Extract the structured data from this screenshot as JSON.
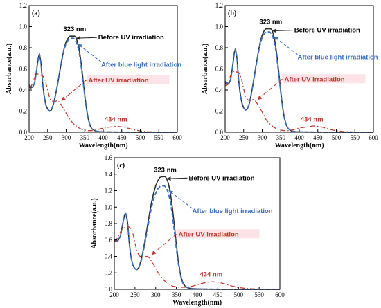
{
  "colors": {
    "before": "#2b2b2b",
    "blue": "#3a6fc4",
    "uv": "#c0392b",
    "peak_label": "#c0392b",
    "blue_label": "#3a6fc4",
    "uv_label": "#c0392b",
    "uv_label_bg": "#fbe3e8"
  },
  "chart_data": [
    {
      "type": "line",
      "panel_label": "(a)",
      "xlabel": "Wavelength(nm)",
      "ylabel": "Absorbance(a.u.)",
      "xlim": [
        200,
        600
      ],
      "ylim": [
        0.0,
        1.2
      ],
      "xticks": [
        200,
        250,
        300,
        350,
        400,
        450,
        500,
        550,
        600
      ],
      "yticks": [
        0.0,
        0.2,
        0.4,
        0.6,
        0.8,
        1.0,
        1.2
      ],
      "ytick_labels": [
        "0.0",
        "0.2",
        "0.4",
        "0.6",
        "0.8",
        "1.0",
        "1.2"
      ],
      "annotations": {
        "peak_uv": "323 nm",
        "before": "Before UV irradiation",
        "blue": "After blue light irradiation",
        "uv": "After UV irradiation",
        "peak_vis": "434 nm"
      },
      "annotation_anchor": {
        "before": [
          323,
          0.91
        ],
        "blue": [
          327,
          0.85
        ],
        "uv": [
          285,
          0.29
        ],
        "peak_vis": [
          434,
          0.05
        ]
      },
      "series": [
        {
          "style": "before",
          "x": [
            200,
            205,
            210,
            215,
            220,
            225,
            228,
            232,
            236,
            240,
            245,
            250,
            255,
            260,
            265,
            270,
            275,
            280,
            285,
            290,
            295,
            300,
            305,
            310,
            315,
            320,
            323,
            326,
            330,
            335,
            340,
            345,
            350,
            355,
            360,
            365,
            370,
            375,
            380,
            390,
            400,
            420,
            450,
            500,
            550,
            600
          ],
          "y": [
            0.44,
            0.42,
            0.43,
            0.47,
            0.58,
            0.71,
            0.74,
            0.66,
            0.48,
            0.36,
            0.26,
            0.22,
            0.2,
            0.21,
            0.26,
            0.33,
            0.42,
            0.52,
            0.62,
            0.72,
            0.8,
            0.86,
            0.89,
            0.91,
            0.91,
            0.91,
            0.91,
            0.9,
            0.86,
            0.79,
            0.67,
            0.52,
            0.36,
            0.22,
            0.12,
            0.06,
            0.03,
            0.02,
            0.01,
            0.005,
            0.003,
            0.002,
            0.001,
            0.0,
            0.0,
            0.0
          ]
        },
        {
          "style": "blue",
          "x": [
            200,
            205,
            210,
            215,
            220,
            225,
            228,
            232,
            236,
            240,
            245,
            250,
            255,
            260,
            265,
            270,
            275,
            280,
            285,
            290,
            295,
            300,
            305,
            310,
            315,
            320,
            323,
            326,
            330,
            335,
            340,
            345,
            350,
            355,
            360,
            365,
            370,
            375,
            380,
            390,
            400,
            420,
            450,
            500,
            550,
            600
          ],
          "y": [
            0.45,
            0.43,
            0.43,
            0.47,
            0.58,
            0.71,
            0.74,
            0.66,
            0.48,
            0.36,
            0.26,
            0.22,
            0.2,
            0.21,
            0.26,
            0.33,
            0.42,
            0.52,
            0.62,
            0.71,
            0.79,
            0.84,
            0.87,
            0.89,
            0.89,
            0.89,
            0.88,
            0.86,
            0.83,
            0.76,
            0.64,
            0.5,
            0.35,
            0.22,
            0.12,
            0.06,
            0.03,
            0.02,
            0.01,
            0.005,
            0.003,
            0.002,
            0.001,
            0.0,
            0.0,
            0.0
          ]
        },
        {
          "style": "uv",
          "x": [
            200,
            205,
            210,
            215,
            220,
            225,
            230,
            235,
            240,
            245,
            250,
            255,
            260,
            265,
            270,
            275,
            280,
            285,
            290,
            295,
            300,
            305,
            310,
            320,
            330,
            340,
            350,
            360,
            370,
            380,
            390,
            400,
            410,
            420,
            430,
            440,
            450,
            460,
            470,
            480,
            500,
            520,
            550,
            600
          ],
          "y": [
            0.42,
            0.43,
            0.47,
            0.52,
            0.55,
            0.55,
            0.54,
            0.54,
            0.52,
            0.47,
            0.4,
            0.33,
            0.3,
            0.29,
            0.29,
            0.3,
            0.29,
            0.27,
            0.24,
            0.21,
            0.18,
            0.15,
            0.12,
            0.08,
            0.05,
            0.03,
            0.02,
            0.015,
            0.015,
            0.02,
            0.03,
            0.04,
            0.045,
            0.05,
            0.055,
            0.055,
            0.05,
            0.045,
            0.035,
            0.025,
            0.012,
            0.005,
            0.002,
            0.0
          ]
        }
      ]
    },
    {
      "type": "line",
      "panel_label": "(b)",
      "xlabel": "Wavelength(nm)",
      "ylabel": "Absorbance(a.u.)",
      "xlim": [
        200,
        600
      ],
      "ylim": [
        0.0,
        1.2
      ],
      "xticks": [
        200,
        250,
        300,
        350,
        400,
        450,
        500,
        550,
        600
      ],
      "yticks": [
        0.0,
        0.2,
        0.4,
        0.6,
        0.8,
        1.0,
        1.2
      ],
      "ytick_labels": [
        "0.0",
        "0.2",
        "0.4",
        "0.6",
        "0.8",
        "1.0",
        "1.2"
      ],
      "annotations": {
        "peak_uv": "323 nm",
        "before": "Before UV irradiation",
        "blue": "After blue light irradiation",
        "uv": "After UV irradiation",
        "peak_vis": "434 nm"
      },
      "annotation_anchor": {
        "before": [
          323,
          0.98
        ],
        "blue": [
          328,
          0.92
        ],
        "uv": [
          285,
          0.3
        ],
        "peak_vis": [
          434,
          0.05
        ]
      },
      "series": [
        {
          "style": "before",
          "x": [
            200,
            205,
            210,
            215,
            220,
            225,
            228,
            232,
            236,
            240,
            245,
            250,
            255,
            260,
            265,
            270,
            275,
            280,
            285,
            290,
            295,
            300,
            305,
            310,
            315,
            320,
            323,
            326,
            330,
            335,
            340,
            345,
            350,
            355,
            360,
            365,
            370,
            375,
            380,
            390,
            400,
            420,
            450,
            500,
            550,
            600
          ],
          "y": [
            0.47,
            0.45,
            0.46,
            0.5,
            0.62,
            0.76,
            0.79,
            0.7,
            0.51,
            0.38,
            0.28,
            0.23,
            0.21,
            0.22,
            0.27,
            0.35,
            0.45,
            0.56,
            0.67,
            0.77,
            0.86,
            0.92,
            0.96,
            0.98,
            0.98,
            0.98,
            0.98,
            0.97,
            0.93,
            0.85,
            0.72,
            0.56,
            0.39,
            0.24,
            0.13,
            0.07,
            0.035,
            0.02,
            0.01,
            0.005,
            0.003,
            0.002,
            0.001,
            0.0,
            0.0,
            0.0
          ]
        },
        {
          "style": "blue",
          "x": [
            200,
            205,
            210,
            215,
            220,
            225,
            228,
            232,
            236,
            240,
            245,
            250,
            255,
            260,
            265,
            270,
            275,
            280,
            285,
            290,
            295,
            300,
            305,
            310,
            315,
            320,
            323,
            326,
            330,
            335,
            340,
            345,
            350,
            355,
            360,
            365,
            370,
            375,
            380,
            390,
            400,
            420,
            450,
            500,
            550,
            600
          ],
          "y": [
            0.48,
            0.46,
            0.46,
            0.5,
            0.62,
            0.76,
            0.79,
            0.7,
            0.51,
            0.38,
            0.28,
            0.23,
            0.21,
            0.22,
            0.27,
            0.35,
            0.45,
            0.55,
            0.66,
            0.76,
            0.84,
            0.9,
            0.93,
            0.95,
            0.95,
            0.95,
            0.94,
            0.93,
            0.89,
            0.82,
            0.69,
            0.54,
            0.38,
            0.24,
            0.13,
            0.07,
            0.035,
            0.02,
            0.01,
            0.005,
            0.003,
            0.002,
            0.001,
            0.0,
            0.0,
            0.0
          ]
        },
        {
          "style": "uv",
          "x": [
            200,
            205,
            210,
            215,
            220,
            225,
            230,
            235,
            240,
            245,
            250,
            255,
            260,
            265,
            270,
            275,
            280,
            285,
            290,
            295,
            300,
            305,
            310,
            320,
            330,
            340,
            350,
            360,
            370,
            380,
            390,
            400,
            410,
            420,
            430,
            440,
            450,
            460,
            470,
            480,
            500,
            520,
            550,
            600
          ],
          "y": [
            0.44,
            0.45,
            0.49,
            0.54,
            0.57,
            0.58,
            0.57,
            0.57,
            0.55,
            0.49,
            0.41,
            0.34,
            0.31,
            0.3,
            0.3,
            0.31,
            0.3,
            0.28,
            0.25,
            0.22,
            0.19,
            0.16,
            0.12,
            0.08,
            0.05,
            0.03,
            0.02,
            0.015,
            0.015,
            0.02,
            0.03,
            0.04,
            0.045,
            0.05,
            0.055,
            0.06,
            0.055,
            0.05,
            0.04,
            0.028,
            0.014,
            0.006,
            0.002,
            0.0
          ]
        }
      ]
    },
    {
      "type": "line",
      "panel_label": "(c)",
      "xlabel": "Wavelength(nm)",
      "ylabel": "Absorbance(a.u.)",
      "xlim": [
        200,
        600
      ],
      "ylim": [
        0.0,
        1.6
      ],
      "xticks": [
        200,
        250,
        300,
        350,
        400,
        450,
        500,
        550,
        600
      ],
      "yticks": [
        0.0,
        0.2,
        0.4,
        0.6,
        0.8,
        1.0,
        1.2,
        1.4,
        1.6
      ],
      "ytick_labels": [
        "0.0",
        "0.2",
        "0.4",
        "0.6",
        "0.8",
        "1.0",
        "1.2",
        "1.4",
        "1.6"
      ],
      "annotations": {
        "peak_uv": "323 nm",
        "before": "Before UV irradiation",
        "blue": "After blue light irradiation",
        "uv": "After UV irradiation",
        "peak_vis": "434 nm"
      },
      "annotation_anchor": {
        "before": [
          323,
          1.37
        ],
        "blue": [
          328,
          1.22
        ],
        "uv": [
          288,
          0.41
        ],
        "peak_vis": [
          434,
          0.09
        ]
      },
      "series": [
        {
          "style": "before",
          "x": [
            200,
            205,
            210,
            215,
            220,
            225,
            228,
            232,
            236,
            240,
            245,
            250,
            255,
            260,
            265,
            270,
            275,
            280,
            285,
            290,
            295,
            300,
            305,
            310,
            315,
            320,
            323,
            326,
            330,
            335,
            340,
            345,
            350,
            355,
            360,
            365,
            370,
            375,
            380,
            390,
            400,
            420,
            450,
            500,
            550,
            600
          ],
          "y": [
            0.6,
            0.58,
            0.6,
            0.65,
            0.79,
            0.91,
            0.92,
            0.82,
            0.57,
            0.4,
            0.29,
            0.25,
            0.24,
            0.27,
            0.36,
            0.48,
            0.62,
            0.77,
            0.92,
            1.06,
            1.17,
            1.26,
            1.32,
            1.36,
            1.37,
            1.37,
            1.37,
            1.35,
            1.3,
            1.19,
            1.01,
            0.78,
            0.54,
            0.33,
            0.18,
            0.09,
            0.045,
            0.025,
            0.015,
            0.008,
            0.005,
            0.003,
            0.001,
            0.0,
            0.0,
            0.0
          ]
        },
        {
          "style": "blue",
          "x": [
            200,
            205,
            210,
            215,
            220,
            225,
            228,
            232,
            236,
            240,
            245,
            250,
            255,
            260,
            265,
            270,
            275,
            280,
            285,
            290,
            295,
            300,
            305,
            310,
            315,
            320,
            323,
            326,
            330,
            335,
            340,
            345,
            350,
            355,
            360,
            365,
            370,
            375,
            380,
            390,
            400,
            420,
            450,
            500,
            550,
            600
          ],
          "y": [
            0.61,
            0.59,
            0.6,
            0.65,
            0.79,
            0.91,
            0.92,
            0.82,
            0.57,
            0.4,
            0.29,
            0.25,
            0.24,
            0.27,
            0.35,
            0.46,
            0.59,
            0.73,
            0.87,
            1.0,
            1.1,
            1.17,
            1.22,
            1.25,
            1.26,
            1.26,
            1.25,
            1.23,
            1.18,
            1.08,
            0.92,
            0.71,
            0.49,
            0.3,
            0.17,
            0.08,
            0.04,
            0.025,
            0.015,
            0.008,
            0.005,
            0.003,
            0.001,
            0.0,
            0.0,
            0.0
          ]
        },
        {
          "style": "uv",
          "x": [
            200,
            205,
            210,
            215,
            220,
            225,
            230,
            235,
            240,
            245,
            250,
            255,
            260,
            265,
            270,
            275,
            280,
            285,
            290,
            295,
            300,
            305,
            310,
            320,
            330,
            340,
            350,
            360,
            370,
            380,
            390,
            400,
            410,
            420,
            430,
            440,
            450,
            460,
            470,
            480,
            500,
            520,
            550,
            600
          ],
          "y": [
            0.58,
            0.6,
            0.65,
            0.7,
            0.73,
            0.75,
            0.76,
            0.76,
            0.74,
            0.68,
            0.56,
            0.46,
            0.41,
            0.39,
            0.39,
            0.4,
            0.4,
            0.38,
            0.34,
            0.3,
            0.26,
            0.21,
            0.17,
            0.11,
            0.07,
            0.04,
            0.03,
            0.025,
            0.025,
            0.03,
            0.04,
            0.055,
            0.07,
            0.08,
            0.09,
            0.09,
            0.085,
            0.075,
            0.06,
            0.045,
            0.022,
            0.01,
            0.003,
            0.0
          ]
        }
      ]
    }
  ]
}
